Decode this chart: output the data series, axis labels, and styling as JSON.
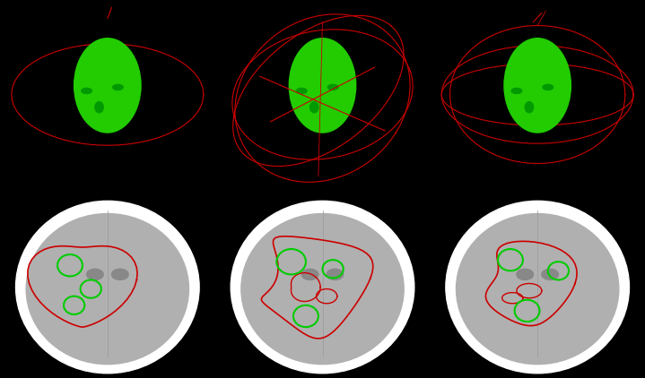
{
  "figsize": [
    7.19,
    4.22
  ],
  "dpi": 100,
  "background_color": "#000000",
  "top_bg": "#ffffff",
  "n_cols": 3,
  "n_rows": 2,
  "head_color": "#22cc00",
  "beam_color": "#cc0000",
  "contour_color": "#cc0000",
  "target_color": "#00cc00",
  "ct_bg": "#000000",
  "ct_brain": "#aaaaaa",
  "ct_skull": "#ffffff"
}
